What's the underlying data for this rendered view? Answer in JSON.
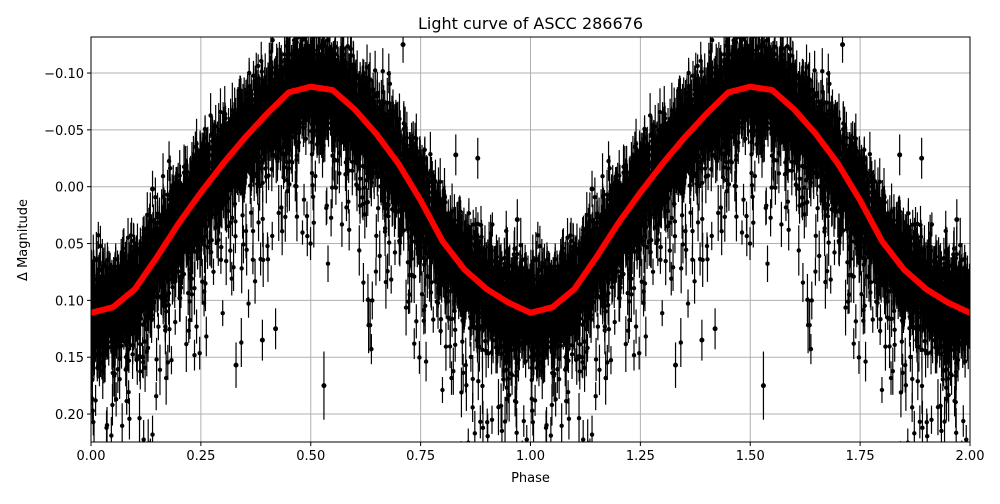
{
  "chart_data": {
    "type": "scatter",
    "title": "Light curve of ASCC 286676",
    "xlabel": "Phase",
    "ylabel": "Δ Magnitude",
    "xlim": [
      0,
      2
    ],
    "ylim": [
      0.2246,
      -0.1317
    ],
    "y_inverted": true,
    "grid": true,
    "x_ticks": [
      "0.00",
      "0.25",
      "0.50",
      "0.75",
      "1.00",
      "1.25",
      "1.50",
      "1.75",
      "2.00"
    ],
    "y_ticks": [
      "−0.10",
      "−0.05",
      "0.00",
      "0.05",
      "0.10",
      "0.15",
      "0.20"
    ],
    "x_tick_values": [
      0,
      0.25,
      0.5,
      0.75,
      1,
      1.25,
      1.5,
      1.75,
      2
    ],
    "y_tick_values": [
      -0.1,
      -0.05,
      0,
      0.05,
      0.1,
      0.15,
      0.2
    ],
    "observations_color": "#000000",
    "model_color": "#ff0000",
    "model_curve": {
      "phase": [
        0,
        0.05,
        0.1,
        0.15,
        0.2,
        0.25,
        0.3,
        0.35,
        0.4,
        0.45,
        0.5,
        0.55,
        0.6,
        0.65,
        0.7,
        0.75,
        0.8,
        0.85,
        0.9,
        0.95,
        1.0
      ],
      "magnitude": [
        0.111,
        0.106,
        0.09,
        0.062,
        0.032,
        0.005,
        -0.02,
        -0.043,
        -0.064,
        -0.083,
        -0.088,
        -0.085,
        -0.068,
        -0.046,
        -0.02,
        0.012,
        0.048,
        0.073,
        0.09,
        0.102,
        0.111
      ],
      "periodic": true
    },
    "observations_scatter_sigma": 0.02,
    "outliers": [
      {
        "phase": 0.71,
        "mag": -0.125,
        "err": 0.008
      },
      {
        "phase": 0.14,
        "mag": 0.002,
        "err": 0.008
      },
      {
        "phase": 0.83,
        "mag": -0.028,
        "err": 0.009
      },
      {
        "phase": 0.88,
        "mag": -0.025,
        "err": 0.009
      },
      {
        "phase": 0.97,
        "mag": 0.029,
        "err": 0.009
      },
      {
        "phase": 0.53,
        "mag": 0.175,
        "err": 0.015
      },
      {
        "phase": 0.39,
        "mag": 0.135,
        "err": 0.009
      },
      {
        "phase": 0.42,
        "mag": 0.125,
        "err": 0.009
      },
      {
        "phase": 0.33,
        "mag": 0.157,
        "err": 0.01
      },
      {
        "phase": 1.71,
        "mag": -0.125,
        "err": 0.008
      },
      {
        "phase": 1.14,
        "mag": 0.002,
        "err": 0.008
      },
      {
        "phase": 1.84,
        "mag": -0.028,
        "err": 0.009
      },
      {
        "phase": 1.89,
        "mag": -0.025,
        "err": 0.009
      },
      {
        "phase": 1.97,
        "mag": 0.029,
        "err": 0.009
      },
      {
        "phase": 1.53,
        "mag": 0.175,
        "err": 0.015
      },
      {
        "phase": 1.39,
        "mag": 0.135,
        "err": 0.009
      },
      {
        "phase": 1.42,
        "mag": 0.125,
        "err": 0.009
      },
      {
        "phase": 1.33,
        "mag": 0.157,
        "err": 0.01
      }
    ]
  }
}
